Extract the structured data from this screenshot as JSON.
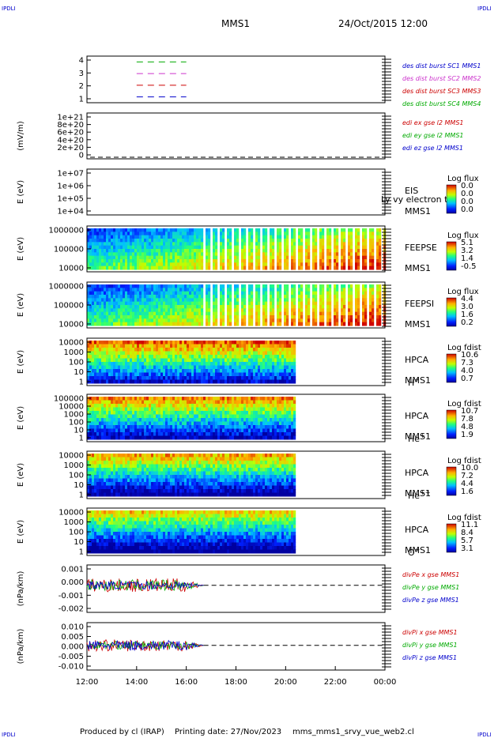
{
  "corner_marks": {
    "tl": "IPDLI",
    "tr": "IPDLI",
    "bl": "IPDLI",
    "br": "IPDLI"
  },
  "header": {
    "spacecraft": "MMS1",
    "datetime": "24/Oct/2015 12:00"
  },
  "footer": {
    "produced_by": "Produced by cl (IRAP)",
    "printing_date": "Printing date: 27/Nov/2023",
    "config": "mms_mms1_srvy_vue_web2.cl"
  },
  "time_axis": {
    "ticks": [
      "12:00",
      "14:00",
      "16:00",
      "18:00",
      "20:00",
      "22:00",
      "00:00"
    ],
    "start_hour": 12,
    "end_hour": 24
  },
  "panels": [
    {
      "key": "burst",
      "ylabel": "",
      "yticks": [
        "4",
        "3",
        "2",
        "1"
      ],
      "legend": [
        {
          "text": "des dist burst SC1 MMS1",
          "color": "#0000cc"
        },
        {
          "text": "des dist burst SC2 MMS2",
          "color": "#cc33cc"
        },
        {
          "text": "des dist burst SC3 MMS3",
          "color": "#cc0000"
        },
        {
          "text": "des dist burst SC4 MMS4",
          "color": "#00aa00"
        }
      ]
    },
    {
      "key": "edi",
      "ylabel": "(mV/m)",
      "yticks": [
        "1e+21",
        "8e+20",
        "6e+20",
        "4e+20",
        "2e+20",
        "0"
      ],
      "legend": [
        {
          "text": "edi ex gse l2 MMS1",
          "color": "#cc0000"
        },
        {
          "text": "edi ey gse l2 MMS1",
          "color": "#00aa00"
        },
        {
          "text": "edi ez gse l2 MMS1",
          "color": "#0000cc"
        }
      ]
    },
    {
      "key": "eis",
      "ylabel": "E (eV)",
      "yticks": [
        "1e+07",
        "1e+06",
        "1e+05",
        "1e+04"
      ],
      "inst": [
        "EIS",
        "MMS1"
      ],
      "overlay": "Ly vy electron to",
      "cbar": {
        "title": "Log flux",
        "labels": [
          "0.0",
          "0.0",
          "0.0",
          "0.0"
        ]
      }
    },
    {
      "key": "feepse",
      "ylabel": "E (eV)",
      "yticks": [
        "1000000",
        "100000",
        "10000"
      ],
      "inst": [
        "FEEPSE",
        "MMS1"
      ],
      "cbar": {
        "title": "Log flux",
        "labels": [
          "5.1",
          "3.2",
          "1.4",
          "-0.5"
        ]
      }
    },
    {
      "key": "feepsi",
      "ylabel": "E (eV)",
      "yticks": [
        "1000000",
        "100000",
        "10000"
      ],
      "inst": [
        "FEEPSI",
        "MMS1"
      ],
      "cbar": {
        "title": "Log flux",
        "labels": [
          "4.4",
          "3.0",
          "1.6",
          "0.2"
        ]
      }
    },
    {
      "key": "hpca_h",
      "ylabel": "E (eV)",
      "yticks": [
        "10000",
        "1000",
        "100",
        "10",
        "1"
      ],
      "inst": [
        "HPCA",
        "MMS1"
      ],
      "species": "H",
      "species_sup": "+",
      "cbar": {
        "title": "Log fdist",
        "labels": [
          "10.6",
          "7.3",
          "4.0",
          "0.7"
        ]
      }
    },
    {
      "key": "hpca_he1",
      "ylabel": "E (eV)",
      "yticks": [
        "100000",
        "10000",
        "1000",
        "100",
        "10",
        "1"
      ],
      "inst": [
        "HPCA",
        "MMS1"
      ],
      "species": "He",
      "species_sup": "+",
      "cbar": {
        "title": "Log fdist",
        "labels": [
          "10.7",
          "7.8",
          "4.8",
          "1.9"
        ]
      }
    },
    {
      "key": "hpca_he2",
      "ylabel": "E (eV)",
      "yticks": [
        "10000",
        "1000",
        "100",
        "10",
        "1"
      ],
      "inst": [
        "HPCA",
        "MMS1"
      ],
      "species": "He",
      "species_sup": "++",
      "cbar": {
        "title": "Log fdist",
        "labels": [
          "10.0",
          "7.2",
          "4.4",
          "1.6"
        ]
      }
    },
    {
      "key": "hpca_o",
      "ylabel": "E (eV)",
      "yticks": [
        "10000",
        "1000",
        "100",
        "10",
        "1"
      ],
      "inst": [
        "HPCA",
        "MMS1"
      ],
      "species": "O",
      "species_sup": "+",
      "cbar": {
        "title": "Log fdist",
        "labels": [
          "11.1",
          "8.4",
          "5.7",
          "3.1"
        ]
      }
    },
    {
      "key": "divpe",
      "ylabel": "(nPa/km)",
      "yticks": [
        "0.001",
        "0.000",
        "-0.001",
        "-0.002"
      ],
      "legend": [
        {
          "text": "divPe x gse MMS1",
          "color": "#cc0000"
        },
        {
          "text": "divPe y gse MMS1",
          "color": "#00aa00"
        },
        {
          "text": "divPe z gse MMS1",
          "color": "#0000cc"
        }
      ]
    },
    {
      "key": "divpi",
      "ylabel": "(nPa/km)",
      "yticks": [
        "0.010",
        "0.005",
        "0.000",
        "-0.005",
        "-0.010"
      ],
      "legend": [
        {
          "text": "divPi x gse MMS1",
          "color": "#cc0000"
        },
        {
          "text": "divPi y gse MMS1",
          "color": "#00aa00"
        },
        {
          "text": "divPi z gse MMS1",
          "color": "#0000cc"
        }
      ]
    }
  ],
  "chart_data": [
    {
      "type": "line",
      "title": "burst",
      "x_range": [
        12,
        24
      ],
      "ylim": [
        0.5,
        4.5
      ],
      "series": [
        {
          "name": "des dist burst SC1 MMS1",
          "x": [
            14,
            16
          ],
          "values": [
            1,
            1
          ]
        },
        {
          "name": "des dist burst SC2 MMS2",
          "x": [
            14,
            16
          ],
          "values": [
            3,
            3
          ]
        },
        {
          "name": "des dist burst SC3 MMS3",
          "x": [
            14,
            16
          ],
          "values": [
            2,
            2
          ]
        },
        {
          "name": "des dist burst SC4 MMS4",
          "x": [
            14,
            16
          ],
          "values": [
            4,
            4
          ]
        }
      ]
    },
    {
      "type": "line",
      "title": "edi",
      "x_range": [
        12,
        24
      ],
      "ylim": [
        0,
        1e+21
      ],
      "series": [
        {
          "name": "edi ez gse l2 MMS1",
          "x": [
            12,
            24
          ],
          "values": [
            0,
            0
          ]
        }
      ]
    },
    {
      "type": "heatmap",
      "title": "EIS",
      "x_range": [
        12,
        24
      ],
      "ylim": [
        10000.0,
        10000000.0
      ],
      "coverage": []
    },
    {
      "type": "heatmap",
      "title": "FEEPSE",
      "x_range": [
        12,
        24
      ],
      "ylim": [
        10000.0,
        1000000.0
      ],
      "coverage": [
        [
          12,
          24
        ]
      ]
    },
    {
      "type": "heatmap",
      "title": "FEEPSI",
      "x_range": [
        12,
        24
      ],
      "ylim": [
        10000.0,
        1000000.0
      ],
      "coverage": [
        [
          12,
          24
        ]
      ]
    },
    {
      "type": "heatmap",
      "title": "HPCA H+",
      "x_range": [
        12,
        24
      ],
      "ylim": [
        1,
        10000.0
      ],
      "coverage": [
        [
          12,
          20.4
        ]
      ]
    },
    {
      "type": "heatmap",
      "title": "HPCA He+",
      "x_range": [
        12,
        24
      ],
      "ylim": [
        1,
        100000.0
      ],
      "coverage": [
        [
          12,
          20.4
        ]
      ]
    },
    {
      "type": "heatmap",
      "title": "HPCA He++",
      "x_range": [
        12,
        24
      ],
      "ylim": [
        1,
        10000.0
      ],
      "coverage": [
        [
          12,
          20.4
        ]
      ]
    },
    {
      "type": "heatmap",
      "title": "HPCA O+",
      "x_range": [
        12,
        24
      ],
      "ylim": [
        1,
        10000.0
      ],
      "coverage": [
        [
          12,
          20.4
        ]
      ]
    },
    {
      "type": "line",
      "title": "divPe",
      "x_range": [
        12,
        24
      ],
      "ylim": [
        -0.002,
        0.0015
      ],
      "data_end_hour": 16.7,
      "series": [
        {
          "name": "divPe x gse MMS1",
          "amp": 0.0005
        },
        {
          "name": "divPe y gse MMS1",
          "amp": 0.0004
        },
        {
          "name": "divPe z gse MMS1",
          "amp": 0.0003
        }
      ]
    },
    {
      "type": "line",
      "title": "divPi",
      "x_range": [
        12,
        24
      ],
      "ylim": [
        -0.0125,
        0.0115
      ],
      "data_end_hour": 16.7,
      "series": [
        {
          "name": "divPi x gse MMS1",
          "amp": 0.003
        },
        {
          "name": "divPi y gse MMS1",
          "amp": 0.002
        },
        {
          "name": "divPi z gse MMS1",
          "amp": 0.0025
        }
      ]
    }
  ]
}
